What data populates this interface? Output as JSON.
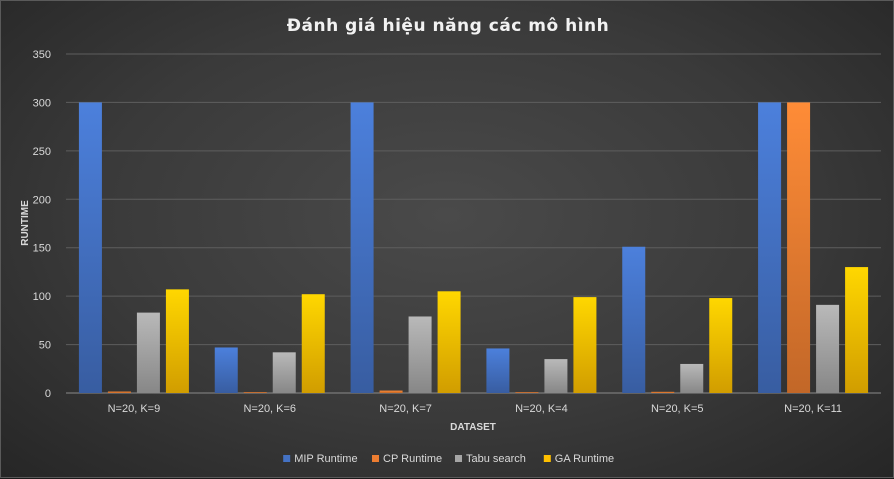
{
  "chart_data": {
    "type": "bar",
    "title": "Đánh giá hiệu năng các mô hình",
    "xlabel": "DATASET",
    "ylabel": "RUNTIME",
    "ylim": [
      0,
      350
    ],
    "yticks": [
      0,
      50,
      100,
      150,
      200,
      250,
      300,
      350
    ],
    "grid": true,
    "legend_position": "bottom",
    "categories": [
      "N=20, K=9",
      "N=20, K=6",
      "N=20, K=7",
      "N=20, K=4",
      "N=20, K=5",
      "N=20, K=11"
    ],
    "series": [
      {
        "name": "MIP Runtime",
        "color": "#4472c4",
        "values": [
          300,
          47,
          300,
          46,
          151,
          300
        ]
      },
      {
        "name": "CP Runtime",
        "color": "#ed7d31",
        "values": [
          1.5,
          0.5,
          2.5,
          0.3,
          1.2,
          300
        ]
      },
      {
        "name": "Tabu search",
        "color": "#a5a5a5",
        "values": [
          83,
          42,
          79,
          35,
          30,
          91
        ]
      },
      {
        "name": "GA Runtime",
        "color": "#ffc000",
        "values": [
          107,
          102,
          105,
          99,
          98,
          130
        ]
      }
    ]
  }
}
